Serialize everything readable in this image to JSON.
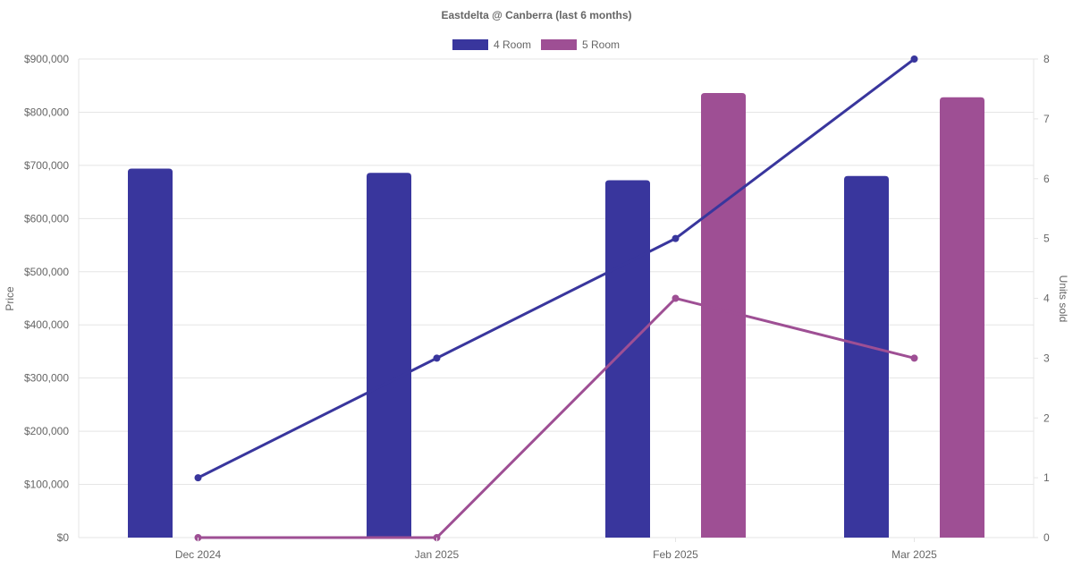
{
  "chart_data": {
    "type": "bar",
    "title": "Eastdelta @ Canberra (last 6 months)",
    "categories": [
      "Dec 2024",
      "Jan 2025",
      "Feb 2025",
      "Mar 2025"
    ],
    "ylabel": "Price",
    "y2label": "Units sold",
    "ylim": [
      0,
      900000
    ],
    "y2lim": [
      0,
      8
    ],
    "yticks": [
      "$0",
      "$100,000",
      "$200,000",
      "$300,000",
      "$400,000",
      "$500,000",
      "$600,000",
      "$700,000",
      "$800,000",
      "$900,000"
    ],
    "y2ticks": [
      "0",
      "1",
      "2",
      "3",
      "4",
      "5",
      "6",
      "7",
      "8"
    ],
    "grid": true,
    "legend_position": "top-center",
    "series": [
      {
        "name": "4 Room",
        "color": "#39369d",
        "price": [
          694000,
          686000,
          672000,
          680000
        ],
        "units": [
          1,
          3,
          5,
          8
        ]
      },
      {
        "name": "5 Room",
        "color": "#9e4f94",
        "price": [
          null,
          null,
          836000,
          828000
        ],
        "units": [
          0,
          0,
          4,
          3
        ]
      }
    ]
  }
}
